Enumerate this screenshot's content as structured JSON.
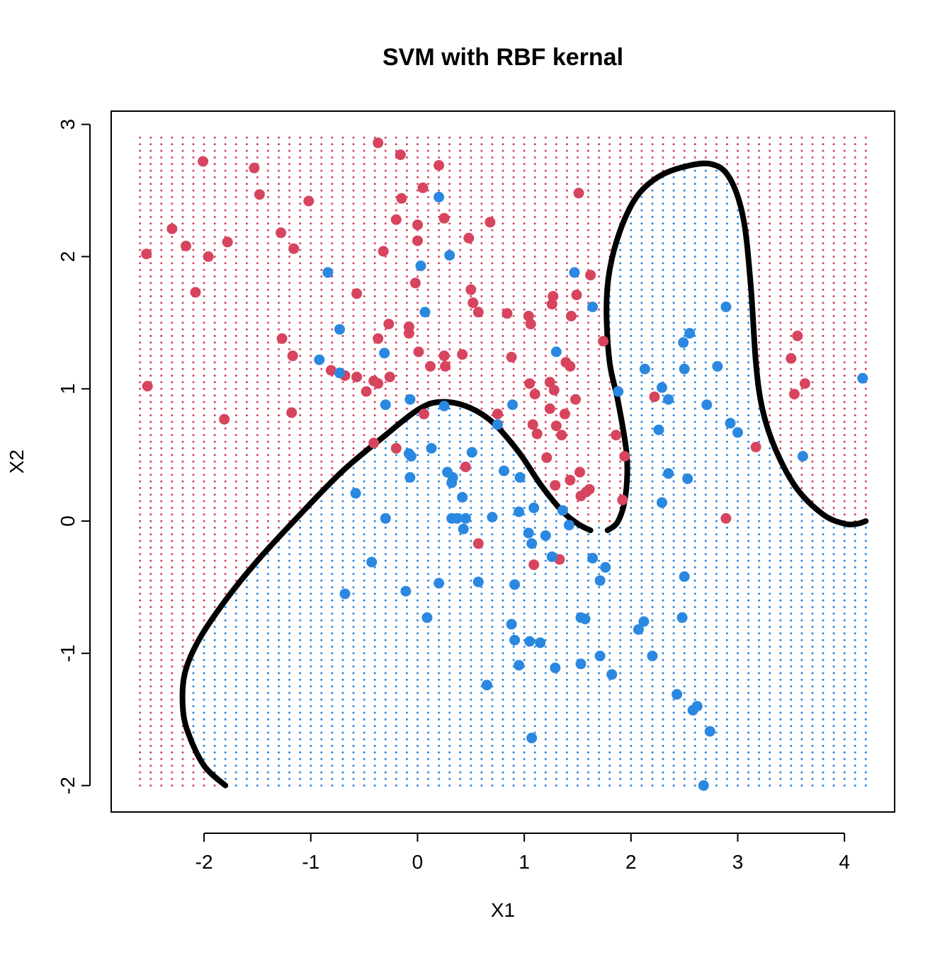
{
  "chart_data": {
    "type": "scatter",
    "title": "SVM with RBF kernal",
    "xlabel": "X1",
    "ylabel": "X2",
    "xlim": [
      -2.87,
      4.47
    ],
    "ylim": [
      -2.2,
      3.1
    ],
    "xticks": [
      "-2",
      "-1",
      "0",
      "1",
      "2",
      "3",
      "4"
    ],
    "yticks": [
      "-2",
      "-1",
      "0",
      "1",
      "2",
      "3"
    ],
    "colors": {
      "class_red": "#D7445E",
      "class_blue": "#2A88E0",
      "boundary": "#000000"
    },
    "grid_range": {
      "x": [
        -2.6,
        4.2
      ],
      "y": [
        -2.0,
        2.9
      ]
    },
    "boundary_segments": [
      [
        [
          -1.8,
          -2.0
        ],
        [
          -2.0,
          -1.85
        ],
        [
          -2.15,
          -1.6
        ],
        [
          -2.2,
          -1.4
        ],
        [
          -2.18,
          -1.15
        ],
        [
          -2.05,
          -0.9
        ],
        [
          -1.8,
          -0.6
        ],
        [
          -1.5,
          -0.3
        ],
        [
          -1.1,
          0.05
        ],
        [
          -0.7,
          0.38
        ],
        [
          -0.3,
          0.65
        ],
        [
          0.0,
          0.84
        ],
        [
          0.2,
          0.9
        ],
        [
          0.45,
          0.87
        ],
        [
          0.7,
          0.75
        ],
        [
          0.95,
          0.52
        ],
        [
          1.15,
          0.28
        ],
        [
          1.35,
          0.08
        ],
        [
          1.5,
          -0.02
        ],
        [
          1.62,
          -0.07
        ]
      ],
      [
        [
          1.78,
          -0.07
        ],
        [
          1.88,
          0.0
        ],
        [
          1.95,
          0.2
        ],
        [
          1.96,
          0.5
        ],
        [
          1.88,
          0.9
        ],
        [
          1.8,
          1.2
        ],
        [
          1.77,
          1.6
        ],
        [
          1.8,
          1.9
        ],
        [
          1.9,
          2.2
        ],
        [
          2.05,
          2.45
        ],
        [
          2.25,
          2.6
        ],
        [
          2.5,
          2.68
        ],
        [
          2.75,
          2.7
        ],
        [
          2.92,
          2.6
        ],
        [
          3.05,
          2.3
        ],
        [
          3.12,
          1.8
        ],
        [
          3.17,
          1.2
        ],
        [
          3.23,
          0.85
        ],
        [
          3.35,
          0.55
        ],
        [
          3.55,
          0.25
        ],
        [
          3.8,
          0.05
        ],
        [
          4.0,
          -0.02
        ],
        [
          4.12,
          -0.02
        ],
        [
          4.2,
          0.0
        ]
      ]
    ],
    "series": [
      {
        "name": "",
        "color": "#D7445E",
        "points": [
          [
            -2.53,
            1.02
          ],
          [
            -2.54,
            2.02
          ],
          [
            -2.3,
            2.21
          ],
          [
            -2.17,
            2.08
          ],
          [
            -2.01,
            2.72
          ],
          [
            -2.08,
            1.73
          ],
          [
            -1.96,
            2.0
          ],
          [
            -1.78,
            2.11
          ],
          [
            -1.81,
            0.77
          ],
          [
            -1.53,
            2.67
          ],
          [
            -1.48,
            2.47
          ],
          [
            -1.28,
            2.18
          ],
          [
            -1.27,
            1.38
          ],
          [
            -1.16,
            2.06
          ],
          [
            -1.17,
            1.25
          ],
          [
            -1.18,
            0.82
          ],
          [
            -1.02,
            2.42
          ],
          [
            -0.81,
            1.14
          ],
          [
            -0.68,
            1.1
          ],
          [
            -0.57,
            1.72
          ],
          [
            -0.57,
            1.09
          ],
          [
            -0.48,
            0.98
          ],
          [
            -0.41,
            1.06
          ],
          [
            -0.41,
            0.59
          ],
          [
            -0.37,
            1.04
          ],
          [
            -0.37,
            2.86
          ],
          [
            -0.37,
            1.38
          ],
          [
            -0.32,
            2.04
          ],
          [
            -0.27,
            1.49
          ],
          [
            -0.26,
            1.09
          ],
          [
            -0.2,
            2.28
          ],
          [
            -0.2,
            0.55
          ],
          [
            -0.16,
            2.77
          ],
          [
            -0.15,
            2.44
          ],
          [
            -0.08,
            1.47
          ],
          [
            -0.08,
            1.42
          ],
          [
            -0.02,
            1.8
          ],
          [
            0.0,
            2.12
          ],
          [
            0.0,
            2.24
          ],
          [
            0.01,
            1.28
          ],
          [
            0.05,
            2.52
          ],
          [
            0.06,
            0.81
          ],
          [
            0.12,
            1.17
          ],
          [
            0.2,
            2.69
          ],
          [
            0.25,
            2.29
          ],
          [
            0.25,
            1.25
          ],
          [
            0.26,
            1.17
          ],
          [
            0.42,
            1.26
          ],
          [
            0.45,
            0.41
          ],
          [
            0.48,
            2.14
          ],
          [
            0.5,
            1.75
          ],
          [
            0.52,
            1.65
          ],
          [
            0.57,
            1.58
          ],
          [
            0.57,
            -0.17
          ],
          [
            0.68,
            2.26
          ],
          [
            0.75,
            0.81
          ],
          [
            0.84,
            1.57
          ],
          [
            0.88,
            1.24
          ],
          [
            1.04,
            1.55
          ],
          [
            1.05,
            1.04
          ],
          [
            1.06,
            1.49
          ],
          [
            1.08,
            0.73
          ],
          [
            1.09,
            -0.33
          ],
          [
            1.1,
            0.96
          ],
          [
            1.12,
            0.66
          ],
          [
            1.21,
            0.48
          ],
          [
            1.24,
            0.85
          ],
          [
            1.24,
            1.05
          ],
          [
            1.26,
            1.64
          ],
          [
            1.27,
            1.7
          ],
          [
            1.28,
            0.99
          ],
          [
            1.29,
            0.27
          ],
          [
            1.3,
            0.72
          ],
          [
            1.33,
            -0.29
          ],
          [
            1.35,
            0.65
          ],
          [
            1.38,
            0.81
          ],
          [
            1.39,
            1.2
          ],
          [
            1.43,
            1.17
          ],
          [
            1.43,
            0.31
          ],
          [
            1.44,
            1.55
          ],
          [
            1.48,
            0.92
          ],
          [
            1.49,
            1.71
          ],
          [
            1.51,
            2.48
          ],
          [
            1.52,
            0.37
          ],
          [
            1.53,
            0.19
          ],
          [
            1.58,
            0.22
          ],
          [
            1.61,
            0.24
          ],
          [
            1.62,
            1.86
          ],
          [
            1.74,
            1.36
          ],
          [
            1.86,
            0.65
          ],
          [
            1.92,
            0.16
          ],
          [
            1.94,
            0.49
          ],
          [
            2.22,
            0.94
          ],
          [
            2.89,
            0.02
          ],
          [
            3.17,
            0.56
          ],
          [
            3.5,
            1.23
          ],
          [
            3.53,
            0.96
          ],
          [
            3.56,
            1.4
          ],
          [
            3.63,
            1.04
          ]
        ]
      },
      {
        "name": "",
        "color": "#2A88E0",
        "points": [
          [
            -0.84,
            1.88
          ],
          [
            -0.73,
            1.45
          ],
          [
            -0.73,
            1.12
          ],
          [
            -0.92,
            1.22
          ],
          [
            -0.68,
            -0.55
          ],
          [
            -0.58,
            0.21
          ],
          [
            -0.43,
            -0.31
          ],
          [
            -0.31,
            1.27
          ],
          [
            -0.3,
            0.88
          ],
          [
            -0.3,
            0.02
          ],
          [
            -0.11,
            -0.53
          ],
          [
            -0.08,
            0.51
          ],
          [
            -0.07,
            0.33
          ],
          [
            -0.07,
            0.92
          ],
          [
            -0.06,
            0.49
          ],
          [
            0.03,
            1.93
          ],
          [
            0.07,
            1.58
          ],
          [
            0.09,
            -0.73
          ],
          [
            0.13,
            0.55
          ],
          [
            0.2,
            -0.47
          ],
          [
            0.2,
            2.45
          ],
          [
            0.25,
            0.87
          ],
          [
            0.28,
            0.37
          ],
          [
            0.3,
            2.01
          ],
          [
            0.32,
            0.29
          ],
          [
            0.32,
            0.02
          ],
          [
            0.33,
            0.33
          ],
          [
            0.37,
            0.02
          ],
          [
            0.42,
            0.18
          ],
          [
            0.43,
            -0.06
          ],
          [
            0.45,
            0.02
          ],
          [
            0.51,
            0.52
          ],
          [
            0.57,
            -0.46
          ],
          [
            0.65,
            -1.24
          ],
          [
            0.7,
            0.03
          ],
          [
            0.75,
            0.73
          ],
          [
            0.81,
            0.38
          ],
          [
            0.88,
            -0.78
          ],
          [
            0.89,
            0.88
          ],
          [
            0.91,
            -0.48
          ],
          [
            0.91,
            -0.9
          ],
          [
            0.95,
            -1.09
          ],
          [
            0.95,
            0.07
          ],
          [
            0.96,
            0.33
          ],
          [
            1.04,
            -0.09
          ],
          [
            1.05,
            -0.91
          ],
          [
            1.07,
            -0.17
          ],
          [
            1.07,
            -1.64
          ],
          [
            1.09,
            0.1
          ],
          [
            1.15,
            -0.92
          ],
          [
            1.2,
            -0.11
          ],
          [
            1.26,
            -0.27
          ],
          [
            1.29,
            -1.11
          ],
          [
            1.3,
            1.28
          ],
          [
            1.36,
            0.08
          ],
          [
            1.42,
            -0.03
          ],
          [
            1.47,
            1.88
          ],
          [
            1.53,
            -0.73
          ],
          [
            1.53,
            -1.08
          ],
          [
            1.57,
            -0.74
          ],
          [
            1.64,
            -0.28
          ],
          [
            1.64,
            1.62
          ],
          [
            1.71,
            -0.45
          ],
          [
            1.71,
            -1.02
          ],
          [
            1.76,
            -0.35
          ],
          [
            1.82,
            -1.16
          ],
          [
            1.88,
            0.98
          ],
          [
            2.07,
            -0.82
          ],
          [
            2.12,
            -0.76
          ],
          [
            2.13,
            1.15
          ],
          [
            2.2,
            -1.02
          ],
          [
            2.26,
            0.69
          ],
          [
            2.29,
            1.01
          ],
          [
            2.29,
            0.14
          ],
          [
            2.35,
            0.92
          ],
          [
            2.35,
            0.36
          ],
          [
            2.43,
            -1.31
          ],
          [
            2.48,
            -0.73
          ],
          [
            2.49,
            1.35
          ],
          [
            2.5,
            -0.42
          ],
          [
            2.5,
            1.15
          ],
          [
            2.53,
            0.32
          ],
          [
            2.55,
            1.42
          ],
          [
            2.58,
            -1.43
          ],
          [
            2.62,
            -1.4
          ],
          [
            2.68,
            -2.0
          ],
          [
            2.71,
            0.88
          ],
          [
            2.74,
            -1.59
          ],
          [
            2.81,
            1.17
          ],
          [
            2.89,
            1.62
          ],
          [
            2.93,
            0.74
          ],
          [
            3.0,
            0.67
          ],
          [
            3.61,
            0.49
          ],
          [
            4.17,
            1.08
          ]
        ]
      }
    ]
  }
}
